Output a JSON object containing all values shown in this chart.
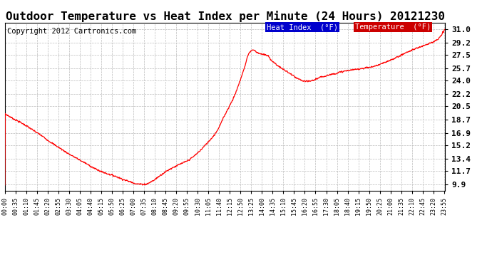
{
  "title": "Outdoor Temperature vs Heat Index per Minute (24 Hours) 20121230",
  "copyright": "Copyright 2012 Cartronics.com",
  "legend_heat_index": "Heat Index  (°F)",
  "legend_temperature": "Temperature  (°F)",
  "y_ticks": [
    9.9,
    11.7,
    13.4,
    15.2,
    16.9,
    18.7,
    20.5,
    22.2,
    24.0,
    25.7,
    27.5,
    29.2,
    31.0
  ],
  "ylim": [
    9.0,
    31.9
  ],
  "line_color": "#ff0000",
  "background_color": "#ffffff",
  "grid_color": "#bbbbbb",
  "title_fontsize": 11.5,
  "copyright_fontsize": 7.5,
  "legend_fontsize": 7.5,
  "legend_bg_heat": "#0000cc",
  "legend_bg_temp": "#cc0000",
  "legend_text_color": "#ffffff",
  "ctrl_hours": [
    0,
    0.4,
    1.0,
    1.5,
    2.0,
    2.5,
    3.0,
    3.5,
    4.0,
    4.5,
    5.0,
    5.5,
    6.0,
    6.5,
    7.0,
    7.2,
    7.6,
    8.0,
    8.5,
    9.0,
    9.5,
    10.0,
    10.5,
    11.0,
    11.5,
    12.0,
    12.5,
    13.0,
    13.3,
    13.5,
    13.7,
    14.0,
    14.3,
    14.5,
    15.0,
    15.5,
    16.0,
    16.4,
    16.7,
    17.0,
    17.5,
    18.0,
    18.5,
    19.0,
    19.5,
    20.0,
    20.5,
    21.0,
    21.5,
    22.0,
    22.5,
    23.0,
    23.5,
    24.0
  ],
  "ctrl_temps": [
    19.5,
    18.9,
    18.1,
    17.3,
    16.5,
    15.6,
    14.8,
    14.0,
    13.3,
    12.6,
    11.9,
    11.4,
    11.0,
    10.5,
    10.1,
    9.95,
    9.9,
    10.3,
    11.2,
    12.0,
    12.6,
    13.2,
    14.2,
    15.5,
    17.0,
    19.5,
    22.0,
    25.5,
    27.8,
    28.2,
    27.9,
    27.6,
    27.4,
    26.8,
    25.8,
    25.0,
    24.2,
    23.9,
    24.0,
    24.3,
    24.7,
    25.0,
    25.3,
    25.5,
    25.7,
    25.9,
    26.3,
    26.8,
    27.4,
    28.0,
    28.5,
    29.0,
    29.5,
    31.2
  ]
}
